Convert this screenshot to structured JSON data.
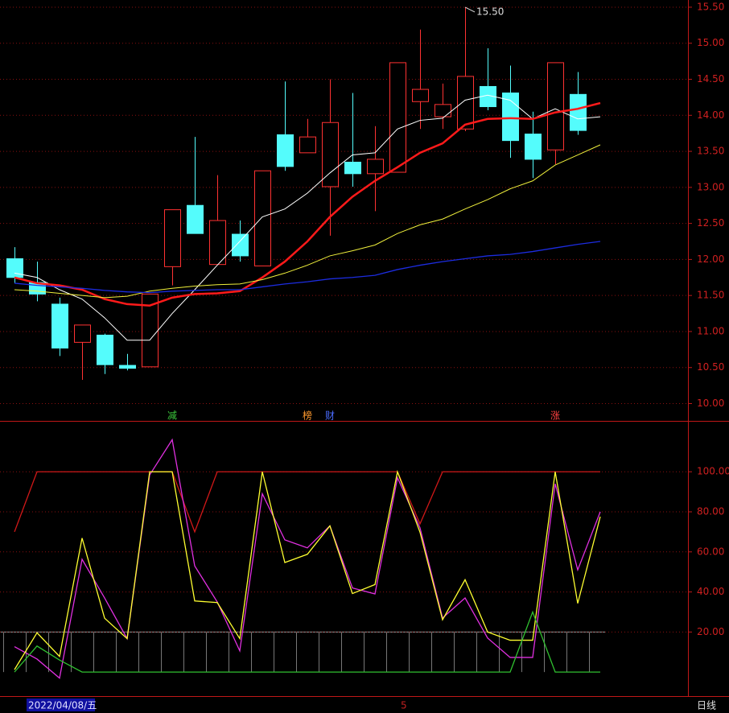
{
  "chart_data": [
    {
      "type": "candlestick",
      "up_color": "#ff3232",
      "down_color": "#54fcfc",
      "open": [
        12.01,
        11.68,
        11.38,
        10.85,
        10.95,
        10.53,
        10.51,
        11.9,
        12.75,
        11.93,
        12.35,
        11.91,
        13.73,
        13.48,
        13.01,
        13.35,
        13.19,
        13.21,
        14.19,
        13.98,
        13.81,
        14.4,
        14.31,
        13.74,
        13.52,
        14.29,
        null
      ],
      "high": [
        12.17,
        11.97,
        11.47,
        11.09,
        10.97,
        10.69,
        11.52,
        12.69,
        13.7,
        13.17,
        12.54,
        13.23,
        14.47,
        13.95,
        14.5,
        14.31,
        13.85,
        14.73,
        15.19,
        14.44,
        15.5,
        14.93,
        14.69,
        14.05,
        14.73,
        14.6,
        null
      ],
      "low": [
        11.67,
        11.42,
        10.66,
        10.33,
        10.41,
        10.46,
        10.51,
        11.64,
        12.36,
        11.93,
        11.97,
        11.91,
        13.23,
        13.48,
        12.33,
        13.01,
        12.67,
        13.21,
        13.81,
        13.81,
        13.78,
        14.07,
        13.41,
        13.13,
        13.32,
        13.73,
        null
      ],
      "close": [
        11.75,
        11.52,
        10.77,
        11.09,
        10.54,
        10.49,
        11.52,
        12.69,
        12.36,
        12.54,
        12.05,
        13.23,
        13.29,
        13.7,
        13.9,
        13.19,
        13.39,
        14.73,
        14.36,
        14.15,
        14.54,
        14.12,
        13.65,
        13.39,
        14.73,
        13.79,
        null
      ],
      "series": [
        {
          "color": "#ffffff",
          "width": 1,
          "values": [
            11.81,
            11.75,
            11.58,
            11.45,
            11.19,
            10.88,
            10.88,
            11.25,
            11.58,
            11.92,
            12.25,
            12.59,
            12.7,
            12.92,
            13.2,
            13.45,
            13.48,
            13.81,
            13.93,
            13.96,
            14.21,
            14.28,
            14.21,
            13.95,
            14.09,
            13.95,
            13.98
          ]
        },
        {
          "color": "#ff1a1a",
          "width": 2.5,
          "values": [
            11.75,
            11.67,
            11.64,
            11.58,
            11.45,
            11.38,
            11.36,
            11.47,
            11.52,
            11.53,
            11.56,
            11.75,
            11.97,
            12.25,
            12.59,
            12.87,
            13.09,
            13.28,
            13.48,
            13.61,
            13.87,
            13.95,
            13.96,
            13.95,
            14.04,
            14.09,
            14.17
          ]
        },
        {
          "color": "#f0f03c",
          "width": 1,
          "values": [
            11.58,
            11.56,
            11.53,
            11.5,
            11.47,
            11.49,
            11.56,
            11.6,
            11.63,
            11.65,
            11.66,
            11.72,
            11.81,
            11.92,
            12.05,
            12.12,
            12.2,
            12.36,
            12.48,
            12.56,
            12.7,
            12.83,
            12.98,
            13.09,
            13.31,
            13.45,
            13.59
          ]
        },
        {
          "color": "#1c2ce0",
          "width": 1.3,
          "values": [
            11.67,
            11.64,
            11.62,
            11.6,
            11.57,
            11.55,
            11.54,
            11.56,
            11.57,
            11.58,
            11.58,
            11.62,
            11.66,
            11.69,
            11.73,
            11.75,
            11.78,
            11.86,
            11.92,
            11.97,
            12.01,
            12.05,
            12.07,
            12.11,
            12.16,
            12.21,
            12.25
          ]
        }
      ],
      "ylim": [
        9.76,
        15.6
      ],
      "yticks": [
        {
          "value": 10,
          "label": "10.00"
        },
        {
          "value": 10.5,
          "label": "10.50"
        },
        {
          "value": 11,
          "label": "11.00"
        },
        {
          "value": 11.5,
          "label": "11.50"
        },
        {
          "value": 12,
          "label": "12.00"
        },
        {
          "value": 12.5,
          "label": "12.50"
        },
        {
          "value": 13,
          "label": "13.00"
        },
        {
          "value": 13.5,
          "label": "13.50"
        },
        {
          "value": 14,
          "label": "14.00"
        },
        {
          "value": 14.5,
          "label": "14.50"
        },
        {
          "value": 15,
          "label": "15.00"
        },
        {
          "value": 15.5,
          "label": "15.50"
        }
      ],
      "grid": true,
      "high_annotation": {
        "index": 20,
        "text": "15.50"
      },
      "markers": [
        {
          "index": 7,
          "text": "减",
          "color": "#3cc83c"
        },
        {
          "index": 13,
          "text": "榜",
          "color": "#ff9a2e"
        },
        {
          "index": 14,
          "text": "财",
          "color": "#4a6cff"
        },
        {
          "index": 24,
          "text": "涨",
          "color": "#ff4040"
        }
      ]
    },
    {
      "type": "line",
      "series": [
        {
          "color": "#d01818",
          "values": [
            70,
            100,
            100,
            100,
            100,
            100,
            100,
            100,
            70,
            100,
            100,
            100,
            100,
            100,
            100,
            100,
            100,
            100,
            74,
            100,
            100,
            100,
            100,
            100,
            100,
            100,
            100
          ]
        },
        {
          "color": "#e030e0",
          "values": [
            12.7,
            6.5,
            -3,
            56.3,
            37,
            16.7,
            98.4,
            116,
            53,
            35,
            10.6,
            89,
            66,
            62,
            73,
            42,
            39,
            97,
            72,
            27,
            37,
            17,
            7.3,
            7.3,
            94,
            51,
            80
          ]
        },
        {
          "color": "#ffff30",
          "values": [
            1.2,
            19.6,
            7.8,
            66.9,
            26.9,
            16.7,
            100,
            100,
            35.5,
            34.7,
            16.7,
            100,
            54.7,
            58.8,
            73,
            39.2,
            43.7,
            100,
            69.8,
            26.1,
            46.1,
            20,
            15.9,
            15.9,
            100,
            34.3,
            77.6
          ]
        },
        {
          "color": "#30c030",
          "values": [
            0,
            13,
            6,
            0,
            0,
            0,
            0,
            0,
            0,
            0,
            0,
            0,
            0,
            0,
            0,
            0,
            0,
            0,
            0,
            0,
            0,
            0,
            0,
            30,
            0,
            0,
            0
          ]
        }
      ],
      "ylim": [
        -12,
        125
      ],
      "yticks": [
        {
          "value": 20,
          "label": "20.00"
        },
        {
          "value": 40,
          "label": "40.00"
        },
        {
          "value": 60,
          "label": "60.00"
        },
        {
          "value": 80,
          "label": "80.00"
        },
        {
          "value": 100,
          "label": "100.00"
        }
      ],
      "grid": true
    }
  ],
  "footer": {
    "date": "2022/04/08/五",
    "mark": "5",
    "period": "日线"
  }
}
